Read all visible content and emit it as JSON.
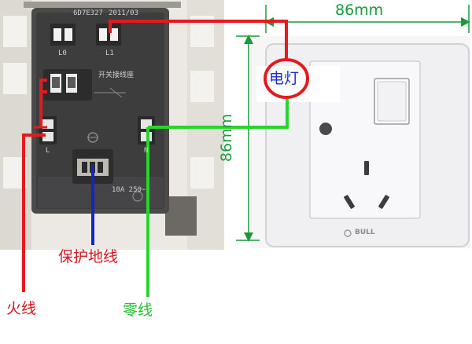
{
  "texts": {
    "module_code": "6D7E327",
    "module_date": "2011/03",
    "l0": "L0",
    "l1": "L1",
    "module_title": "开关接线座",
    "l_mark": "L",
    "n_mark": "N",
    "rating": "10A 250~",
    "live_wire": "火线",
    "ground_wire": "保护地线",
    "neutral_wire": "零线",
    "lamp": "电灯",
    "width_label": "86mm",
    "height_label": "86mm",
    "brand": "BULL"
  },
  "colors": {
    "live": "#e51a1f",
    "ground": "#1226c6",
    "neutral": "#2ad42e",
    "dimension": "#1a9a3c"
  }
}
